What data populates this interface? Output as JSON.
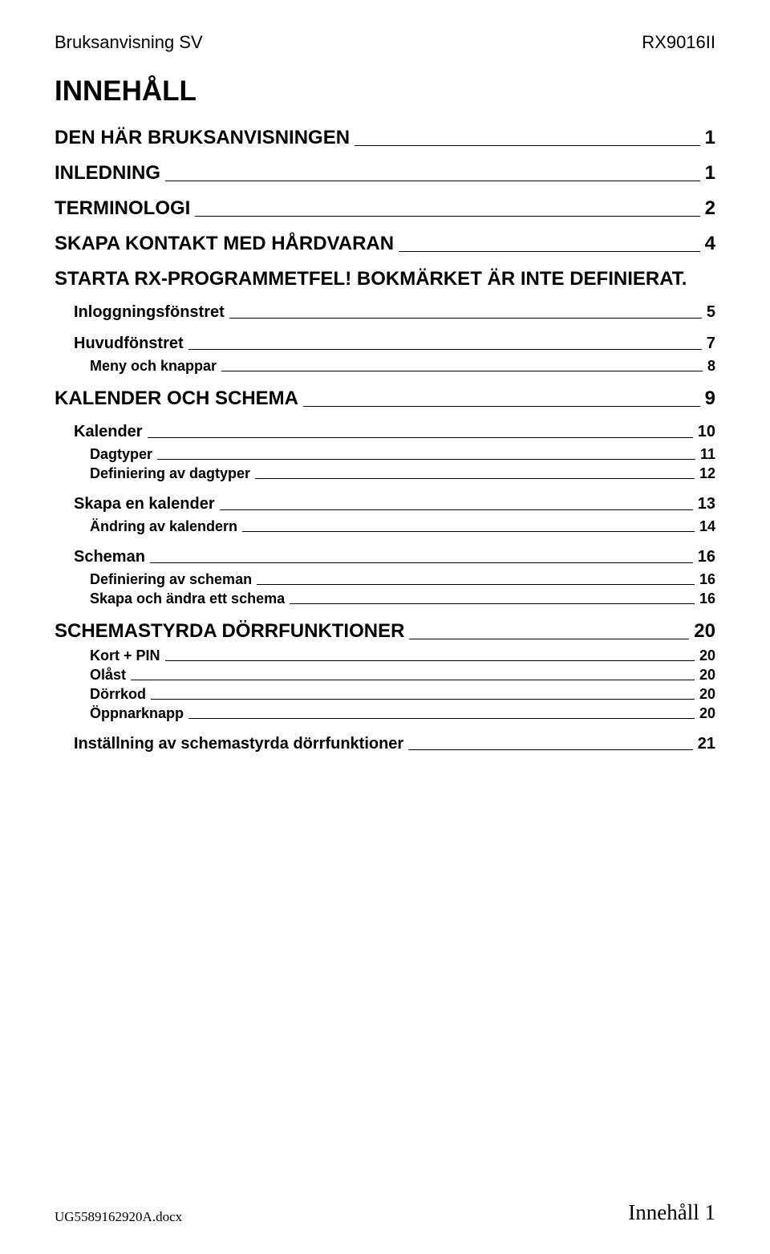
{
  "header": {
    "left": "Bruksanvisning SV",
    "right": "RX9016II"
  },
  "title": "INNEHÅLL",
  "toc": [
    {
      "level": 1,
      "label": "DEN HÄR BRUKSANVISNINGEN",
      "page": "1",
      "gap_before": false
    },
    {
      "level": 1,
      "label": "INLEDNING",
      "page": "1",
      "gap_before": true
    },
    {
      "level": 1,
      "label": "TERMINOLOGI",
      "page": "2",
      "gap_before": true
    },
    {
      "level": 1,
      "label": "SKAPA KONTAKT MED HÅRDVARAN",
      "page": "4",
      "gap_before": true
    },
    {
      "level": 1,
      "two_part": true,
      "seg1": "STARTA RX-PROGRAMMET",
      "seg2": "FEL! BOKMÄRKET ÄR INTE DEFINIERAT.",
      "gap_before": true
    },
    {
      "level": 2,
      "label": "Inloggningsfönstret",
      "page": "5",
      "gap_before": true
    },
    {
      "level": 2,
      "label": "Huvudfönstret",
      "page": "7",
      "gap_before": true
    },
    {
      "level": 3,
      "label": "Meny och knappar",
      "page": "8",
      "gap_before": false,
      "sub": true
    },
    {
      "level": 1,
      "label": "KALENDER OCH SCHEMA",
      "page": "9",
      "gap_before": true
    },
    {
      "level": 2,
      "label": "Kalender",
      "page": "10",
      "gap_before": true
    },
    {
      "level": 3,
      "label": "Dagtyper",
      "page": "11",
      "gap_before": false,
      "sub": true
    },
    {
      "level": 3,
      "label": "Definiering av dagtyper",
      "page": "12",
      "gap_before": false,
      "sub": true
    },
    {
      "level": 2,
      "label": "Skapa en kalender",
      "page": "13",
      "gap_before": true
    },
    {
      "level": 3,
      "label": "Ändring av kalendern",
      "page": "14",
      "gap_before": false,
      "sub": true
    },
    {
      "level": 2,
      "label": "Scheman",
      "page": "16",
      "gap_before": true
    },
    {
      "level": 3,
      "label": "Definiering av scheman",
      "page": "16",
      "gap_before": false,
      "sub": true
    },
    {
      "level": 3,
      "label": "Skapa och ändra ett schema",
      "page": "16",
      "gap_before": false,
      "sub": true
    },
    {
      "level": 1,
      "label": "SCHEMASTYRDA DÖRRFUNKTIONER",
      "page": "20",
      "gap_before": true
    },
    {
      "level": 3,
      "label": "Kort + PIN",
      "page": "20",
      "gap_before": false,
      "sub": true
    },
    {
      "level": 3,
      "label": "Olåst",
      "page": "20",
      "gap_before": false,
      "sub": true
    },
    {
      "level": 3,
      "label": "Dörrkod",
      "page": "20",
      "gap_before": false,
      "sub": true
    },
    {
      "level": 3,
      "label": "Öppnarknapp",
      "page": "20",
      "gap_before": false,
      "sub": true
    },
    {
      "level": 2,
      "label": "Inställning av schemastyrda dörrfunktioner",
      "page": "21",
      "gap_before": true
    }
  ],
  "footer": {
    "left": "UG5589162920A.docx",
    "right": "Innehåll 1"
  },
  "colors": {
    "text": "#000000",
    "background": "#ffffff",
    "line": "#000000"
  }
}
